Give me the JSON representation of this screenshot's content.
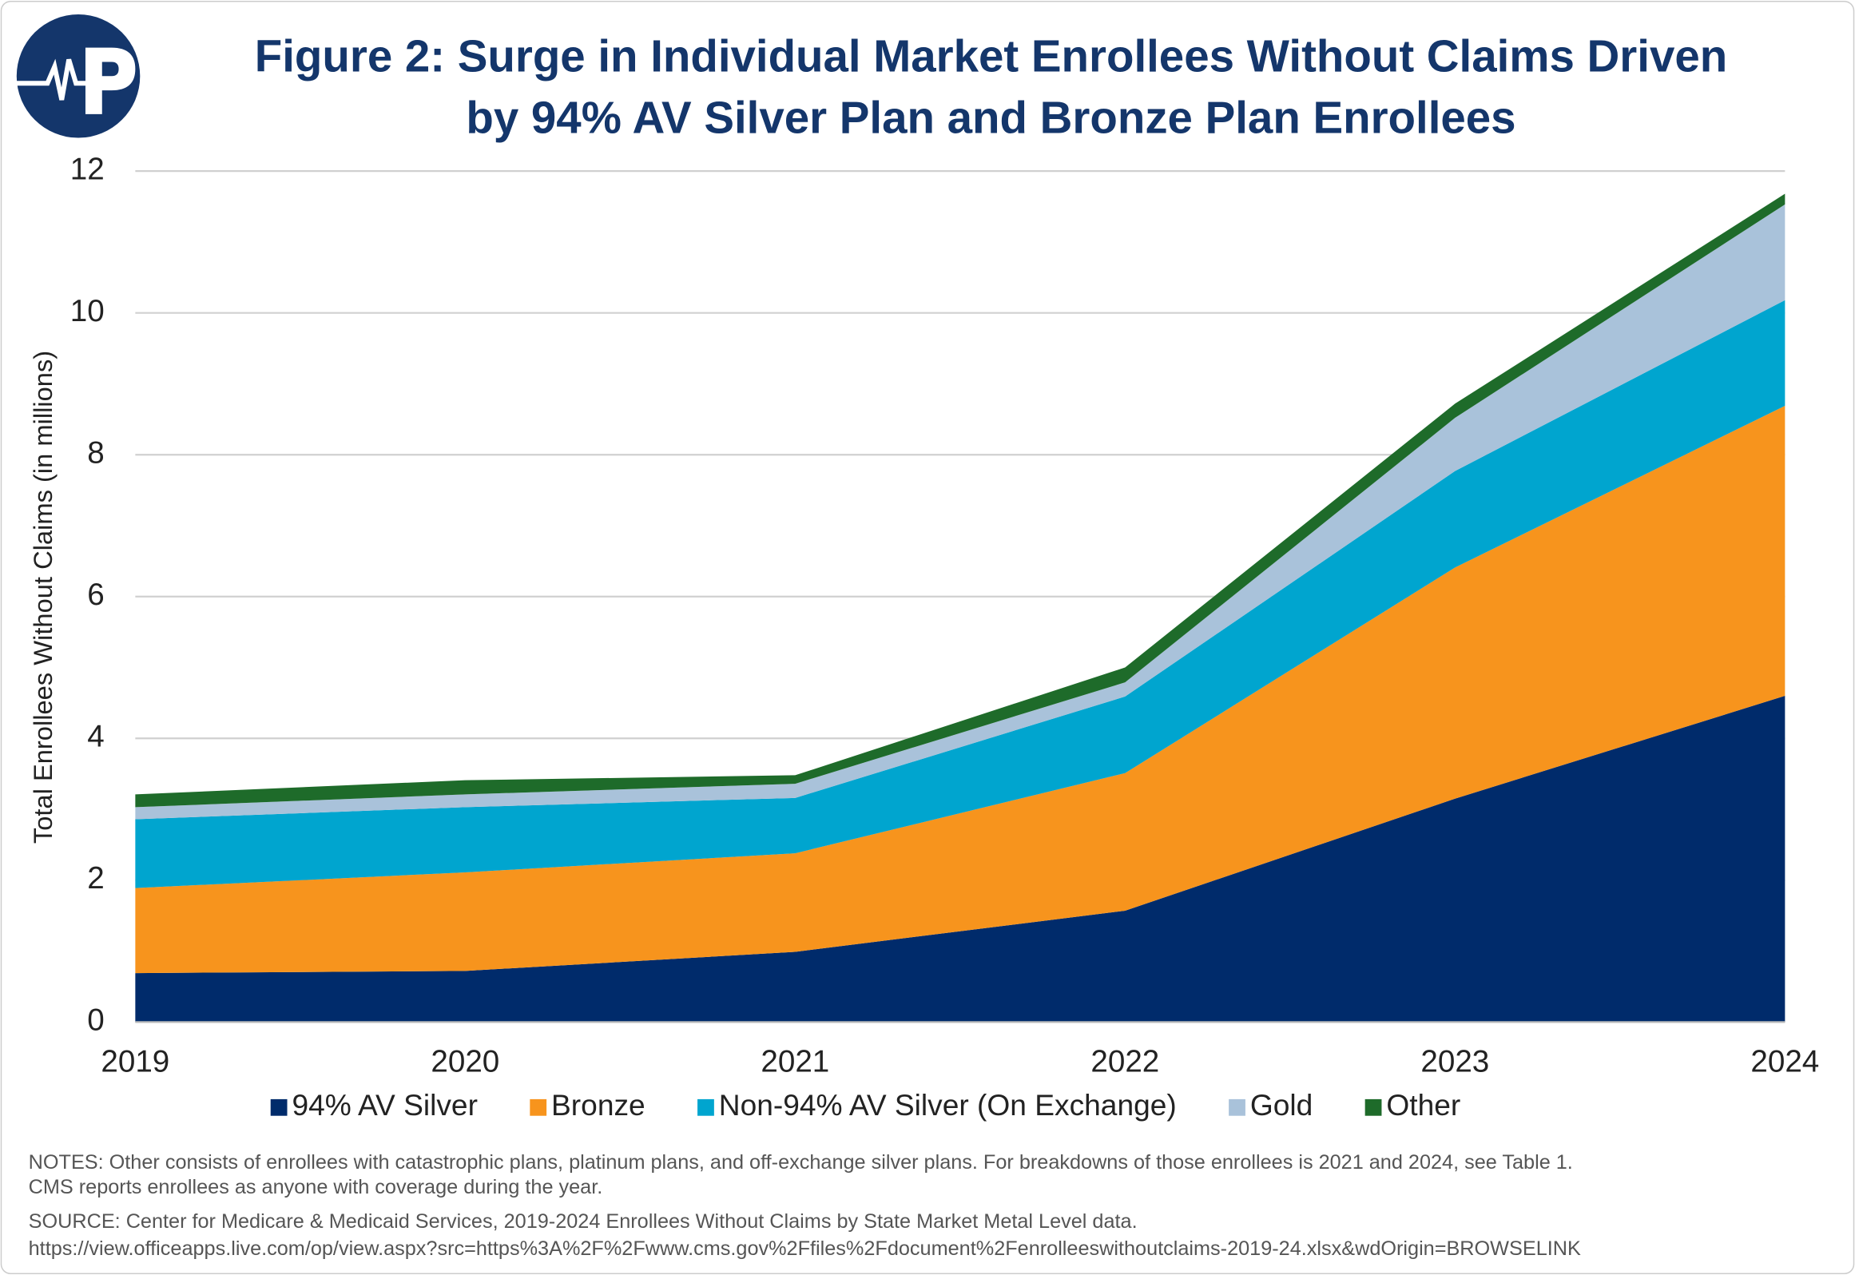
{
  "chart_data": {
    "type": "stacked-area",
    "title": [
      "Figure 2: Surge in Individual Market Enrollees Without Claims Driven",
      "by 94% AV Silver Plan and Bronze Plan Enrollees"
    ],
    "y_label": "Total Enrollees Without Claims (in millions)",
    "categories": [
      "2019",
      "2020",
      "2021",
      "2022",
      "2023",
      "2024"
    ],
    "series": [
      {
        "name": "94% AV Silver",
        "color": "#002b6b",
        "values": [
          0.69,
          0.72,
          0.99,
          1.57,
          3.15,
          4.6
        ]
      },
      {
        "name": "Bronze",
        "color": "#f7941d",
        "values": [
          1.2,
          1.39,
          1.39,
          1.94,
          3.26,
          4.09
        ]
      },
      {
        "name": "Non-94% AV Silver (On Exchange)",
        "color": "#00a5cf",
        "values": [
          0.97,
          0.92,
          0.78,
          1.08,
          1.36,
          1.49
        ]
      },
      {
        "name": "Gold",
        "color": "#a9c2da",
        "values": [
          0.17,
          0.18,
          0.2,
          0.2,
          0.75,
          1.35
        ]
      },
      {
        "name": "Other",
        "color": "#1e6b2a",
        "values": [
          0.18,
          0.2,
          0.12,
          0.21,
          0.2,
          0.15
        ]
      }
    ],
    "ylim": [
      0,
      12
    ],
    "yticks": [
      0,
      2,
      4,
      6,
      8,
      10,
      12
    ],
    "grid": true,
    "notes": [
      "NOTES: Other consists of enrollees with catastrophic plans, platinum plans, and off-exchange silver plans. For breakdowns of those enrollees is 2021 and 2024, see Table 1.",
      "CMS reports enrollees as anyone with coverage during the year."
    ],
    "source": [
      "SOURCE: Center for Medicare & Medicaid Services, 2019-2024 Enrollees Without Claims by State Market Metal Level data.",
      "https://view.officeapps.live.com/op/view.aspx?src=https%3A%2F%2Fwww.cms.gov%2Ffiles%2Fdocument%2Fenrolleeswithoutclaims-2019-24.xlsx&wdOrigin=BROWSELINK"
    ]
  }
}
